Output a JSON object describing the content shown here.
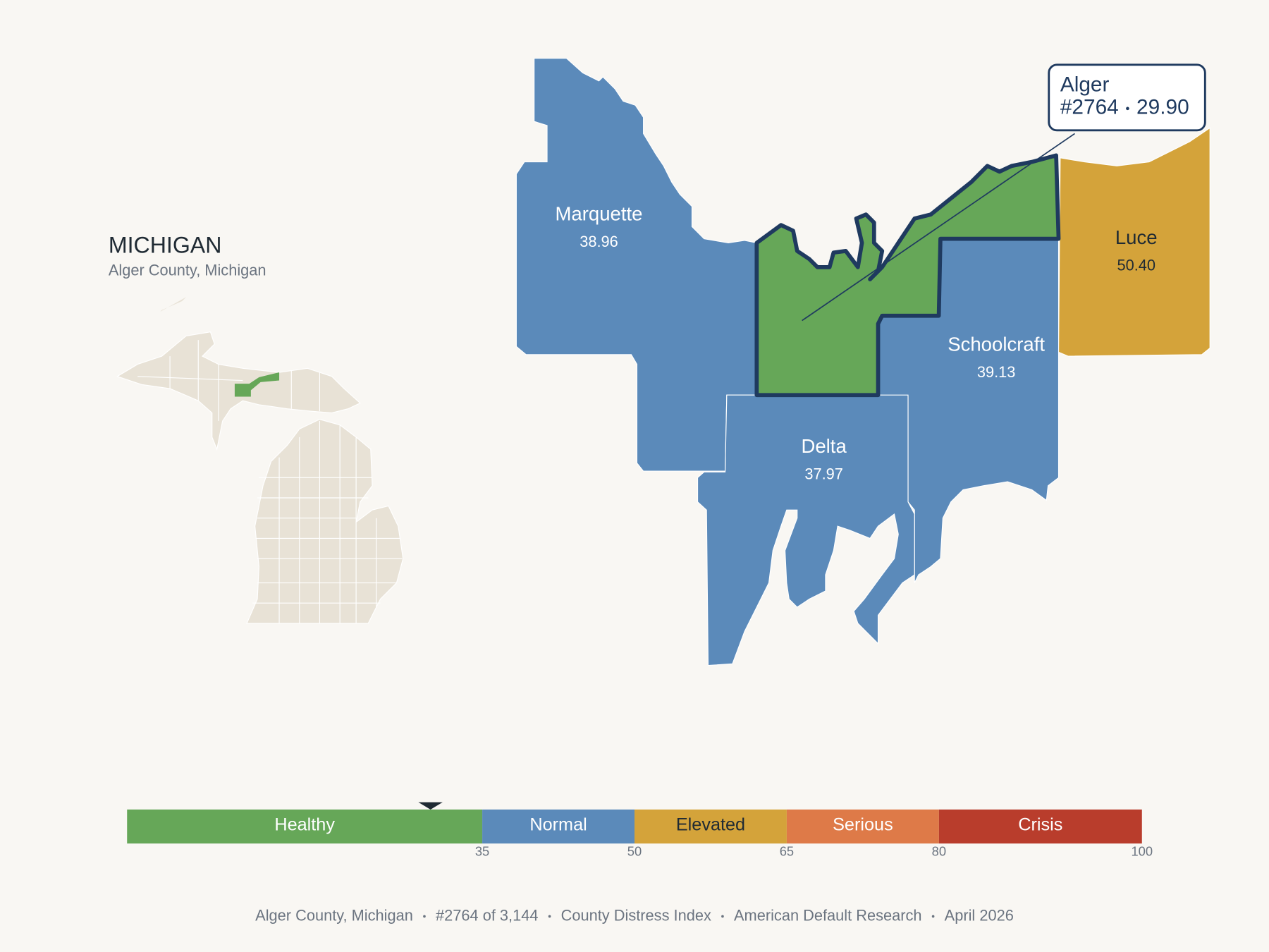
{
  "header": {
    "title": "MICHIGAN",
    "subtitle": "Alger County, Michigan"
  },
  "map": {
    "counties": [
      {
        "name": "Marquette",
        "value": "38.96"
      },
      {
        "name": "Alger",
        "value": "29.90"
      },
      {
        "name": "Schoolcraft",
        "value": "39.13"
      },
      {
        "name": "Delta",
        "value": "37.97"
      },
      {
        "name": "Luce",
        "value": "50.40"
      }
    ],
    "highlight": 1,
    "callout": {
      "rank": "#2764"
    }
  },
  "scale": {
    "lim": [
      0,
      100
    ],
    "ticks": [
      35,
      50,
      65,
      80,
      100
    ],
    "bands": [
      {
        "label": "Healthy",
        "color": "#66a758"
      },
      {
        "label": "Normal",
        "color": "#5b8aba"
      },
      {
        "label": "Elevated",
        "color": "#d4a33a"
      },
      {
        "label": "Serious",
        "color": "#de7a48"
      },
      {
        "label": "Crisis",
        "color": "#b93d2c"
      }
    ]
  },
  "footer": [
    "Alger County, Michigan",
    "#2764 of 3,144",
    "County Distress Index",
    "American Default Research",
    "April 2026"
  ]
}
